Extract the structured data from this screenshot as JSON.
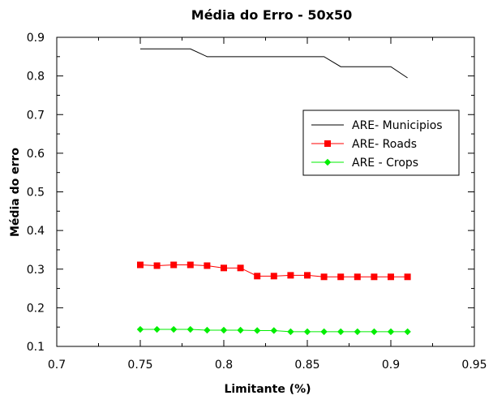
{
  "chart_data": {
    "type": "line",
    "title": "Média do Erro - 50x50",
    "xlabel": "Limitante (%)",
    "ylabel": "Média do erro",
    "xlim": [
      0.7,
      0.95
    ],
    "ylim": [
      0.1,
      0.9
    ],
    "x_ticks": [
      0.7,
      0.75,
      0.8,
      0.85,
      0.9,
      0.95
    ],
    "x_tick_labels": [
      "0.7",
      "0.75",
      "0.8",
      "0.85",
      "0.9",
      "0.95"
    ],
    "y_ticks": [
      0.1,
      0.2,
      0.3,
      0.4,
      0.5,
      0.6,
      0.7,
      0.8,
      0.9
    ],
    "y_tick_labels": [
      "0.1",
      "0.2",
      "0.3",
      "0.4",
      "0.5",
      "0.6",
      "0.7",
      "0.8",
      "0.9"
    ],
    "grid": false,
    "legend_position": "center-right",
    "series": [
      {
        "name": "ARE- Municipios",
        "color": "#000000",
        "marker": "none",
        "x": [
          0.75,
          0.76,
          0.77,
          0.78,
          0.79,
          0.8,
          0.81,
          0.82,
          0.83,
          0.84,
          0.85,
          0.86,
          0.87,
          0.88,
          0.89,
          0.9,
          0.91
        ],
        "y": [
          0.87,
          0.87,
          0.87,
          0.87,
          0.85,
          0.85,
          0.85,
          0.85,
          0.85,
          0.85,
          0.85,
          0.85,
          0.824,
          0.824,
          0.824,
          0.824,
          0.795
        ]
      },
      {
        "name": "ARE- Roads",
        "color": "#ff0000",
        "marker": "square",
        "x": [
          0.75,
          0.76,
          0.77,
          0.78,
          0.79,
          0.8,
          0.81,
          0.82,
          0.83,
          0.84,
          0.85,
          0.86,
          0.87,
          0.88,
          0.89,
          0.9,
          0.91
        ],
        "y": [
          0.311,
          0.309,
          0.311,
          0.311,
          0.309,
          0.303,
          0.303,
          0.282,
          0.282,
          0.284,
          0.284,
          0.28,
          0.28,
          0.28,
          0.28,
          0.28,
          0.28
        ]
      },
      {
        "name": "ARE - Crops",
        "color": "#00ee00",
        "marker": "diamond",
        "x": [
          0.75,
          0.76,
          0.77,
          0.78,
          0.79,
          0.8,
          0.81,
          0.82,
          0.83,
          0.84,
          0.85,
          0.86,
          0.87,
          0.88,
          0.89,
          0.9,
          0.91
        ],
        "y": [
          0.144,
          0.144,
          0.144,
          0.144,
          0.142,
          0.142,
          0.142,
          0.141,
          0.141,
          0.138,
          0.138,
          0.138,
          0.138,
          0.138,
          0.138,
          0.138,
          0.138
        ]
      }
    ]
  }
}
